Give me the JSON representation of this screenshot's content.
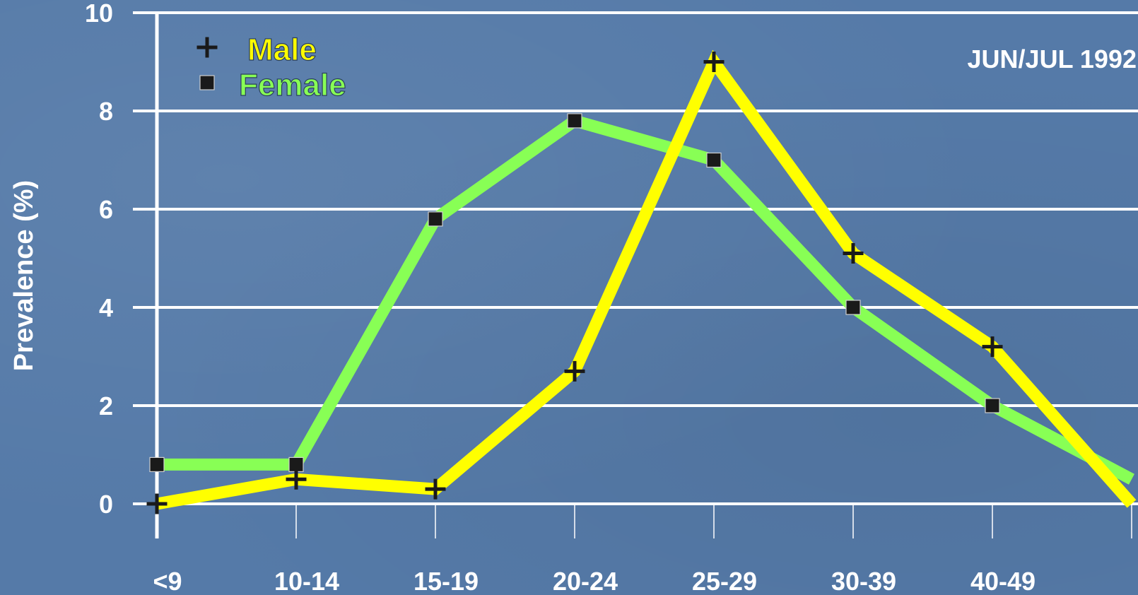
{
  "chart_data": {
    "type": "line",
    "title": "",
    "annotation": "JUN/JUL 1992",
    "xlabel": "",
    "ylabel": "Prevalence (%)",
    "ylim": [
      0,
      10
    ],
    "yticks": [
      0,
      2,
      4,
      6,
      8,
      10
    ],
    "categories": [
      "<9",
      "10-14",
      "15-19",
      "20-24",
      "25-29",
      "30-39",
      "40-49",
      ""
    ],
    "grid": true,
    "legend_position": "top-left",
    "series": [
      {
        "name": "Male",
        "color": "#ffff00",
        "marker": "plus",
        "values": [
          0,
          0.5,
          0.3,
          2.7,
          9.0,
          5.1,
          3.2,
          0
        ]
      },
      {
        "name": "Female",
        "color": "#88ff55",
        "marker": "square",
        "values": [
          0.8,
          0.8,
          5.8,
          7.8,
          7.0,
          4.0,
          2.0,
          0.5
        ]
      }
    ]
  }
}
